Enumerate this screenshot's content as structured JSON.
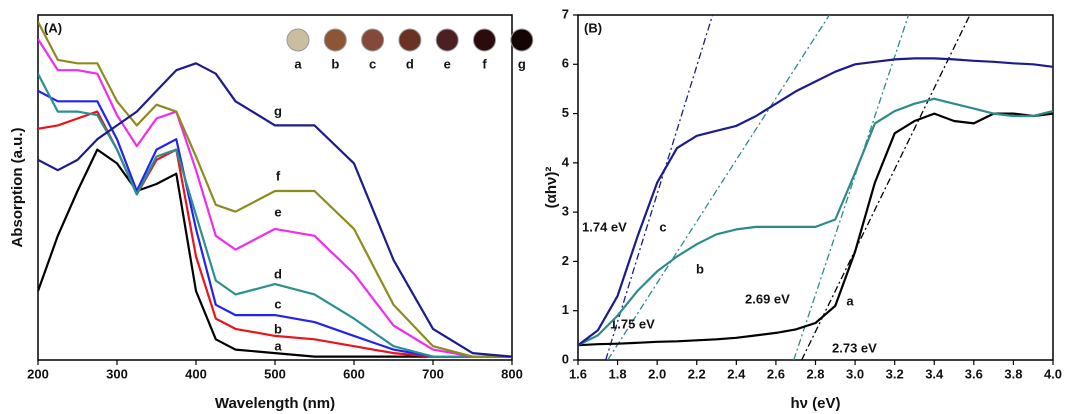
{
  "chart_data": [
    {
      "type": "line",
      "title": "(A)",
      "x_label": "Wavelength (nm)",
      "y_label": "Absorption (a.u.)",
      "x": [
        200,
        225,
        250,
        275,
        300,
        325,
        350,
        375,
        400,
        425,
        450,
        500,
        550,
        600,
        650,
        700,
        750,
        800
      ],
      "xlim": [
        200,
        800
      ],
      "xticks": [
        200,
        300,
        400,
        500,
        600,
        700,
        800
      ],
      "ylim": [
        0,
        1
      ],
      "series": [
        {
          "name": "a",
          "color": "#000000",
          "swatch": "#cbbd9f",
          "values": [
            0.2,
            0.36,
            0.49,
            0.61,
            0.57,
            0.49,
            0.51,
            0.54,
            0.2,
            0.06,
            0.03,
            0.02,
            0.01,
            0.01,
            0.01,
            0.01,
            0.01,
            0.01
          ]
        },
        {
          "name": "b",
          "color": "#e8151b",
          "swatch": "#8e5535",
          "values": [
            0.67,
            0.68,
            0.7,
            0.72,
            0.61,
            0.48,
            0.58,
            0.61,
            0.3,
            0.12,
            0.09,
            0.07,
            0.06,
            0.04,
            0.02,
            0.01,
            0.01,
            0.01
          ]
        },
        {
          "name": "c",
          "color": "#2323ee",
          "swatch": "#84493a",
          "values": [
            0.78,
            0.75,
            0.75,
            0.75,
            0.64,
            0.49,
            0.61,
            0.64,
            0.38,
            0.16,
            0.13,
            0.13,
            0.11,
            0.07,
            0.03,
            0.01,
            0.01,
            0.01
          ]
        },
        {
          "name": "d",
          "color": "#2a9090",
          "swatch": "#6a3222",
          "values": [
            0.83,
            0.72,
            0.72,
            0.71,
            0.61,
            0.48,
            0.59,
            0.61,
            0.42,
            0.23,
            0.19,
            0.22,
            0.19,
            0.12,
            0.04,
            0.01,
            0.01,
            0.01
          ]
        },
        {
          "name": "e",
          "color": "#f02cf0",
          "swatch": "#4b2020",
          "values": [
            0.93,
            0.84,
            0.84,
            0.83,
            0.71,
            0.62,
            0.7,
            0.72,
            0.55,
            0.36,
            0.32,
            0.38,
            0.36,
            0.25,
            0.1,
            0.03,
            0.01,
            0.01
          ]
        },
        {
          "name": "f",
          "color": "#8c8c1e",
          "swatch": "#2b0b0b",
          "values": [
            0.98,
            0.87,
            0.86,
            0.86,
            0.75,
            0.68,
            0.74,
            0.72,
            0.59,
            0.45,
            0.43,
            0.49,
            0.49,
            0.38,
            0.16,
            0.04,
            0.01,
            0.01
          ]
        },
        {
          "name": "g",
          "color": "#1c1c8c",
          "swatch": "#140505",
          "values": [
            0.58,
            0.55,
            0.58,
            0.64,
            0.68,
            0.72,
            0.78,
            0.84,
            0.86,
            0.83,
            0.75,
            0.68,
            0.68,
            0.57,
            0.29,
            0.09,
            0.02,
            0.01
          ]
        }
      ]
    },
    {
      "type": "line",
      "title": "(B)",
      "x_label": "hν (eV)",
      "y_label": "(αhν)²",
      "x": [
        1.6,
        1.7,
        1.8,
        1.9,
        2.0,
        2.1,
        2.2,
        2.3,
        2.4,
        2.5,
        2.6,
        2.7,
        2.8,
        2.9,
        3.0,
        3.1,
        3.2,
        3.3,
        3.4,
        3.5,
        3.6,
        3.7,
        3.8,
        3.9,
        4.0
      ],
      "xlim": [
        1.6,
        4.0
      ],
      "xticks": [
        1.6,
        1.8,
        {
          "value": 2,
          "label": "2.0"
        },
        2.2,
        2.4,
        2.6,
        2.8,
        {
          "value": 3,
          "label": "3.0"
        },
        3.2,
        3.4,
        3.6,
        3.8,
        {
          "value": 4,
          "label": "4.0"
        }
      ],
      "ylim": [
        0,
        7
      ],
      "yticks": [
        0,
        1,
        2,
        3,
        4,
        5,
        6,
        7
      ],
      "series": [
        {
          "name": "a",
          "color": "#000000",
          "values": [
            0.3,
            0.32,
            0.33,
            0.35,
            0.37,
            0.38,
            0.4,
            0.42,
            0.45,
            0.5,
            0.55,
            0.62,
            0.75,
            1.1,
            2.2,
            3.6,
            4.6,
            4.85,
            5.0,
            4.85,
            4.8,
            5.0,
            5.0,
            4.95,
            5.0
          ]
        },
        {
          "name": "b",
          "color": "#2e8b8b",
          "values": [
            0.3,
            0.5,
            0.9,
            1.4,
            1.8,
            2.1,
            2.35,
            2.55,
            2.65,
            2.7,
            2.7,
            2.7,
            2.7,
            2.85,
            3.8,
            4.8,
            5.05,
            5.2,
            5.3,
            5.2,
            5.1,
            5.0,
            4.95,
            4.95,
            5.05
          ]
        },
        {
          "name": "c",
          "color": "#1c1c8c",
          "values": [
            0.3,
            0.6,
            1.3,
            2.5,
            3.6,
            4.3,
            4.55,
            4.65,
            4.75,
            4.95,
            5.2,
            5.45,
            5.65,
            5.85,
            6.0,
            6.05,
            6.1,
            6.12,
            6.12,
            6.1,
            6.07,
            6.05,
            6.02,
            6.0,
            5.95
          ]
        }
      ],
      "tangents": [
        {
          "label": "1.74 eV",
          "color": "#1c1c8c",
          "x": [
            1.74,
            2.28
          ],
          "y": [
            0,
            7
          ]
        },
        {
          "label": "1.75 eV",
          "color": "#2e8b8b",
          "x": [
            1.75,
            2.87
          ],
          "y": [
            0,
            7
          ]
        },
        {
          "label": "2.69 eV",
          "color": "#2e8b8b",
          "x": [
            2.69,
            3.27
          ],
          "y": [
            0,
            7
          ]
        },
        {
          "label": "2.73 eV",
          "color": "#000000",
          "x": [
            2.73,
            3.58
          ],
          "y": [
            0,
            7
          ]
        }
      ]
    }
  ]
}
